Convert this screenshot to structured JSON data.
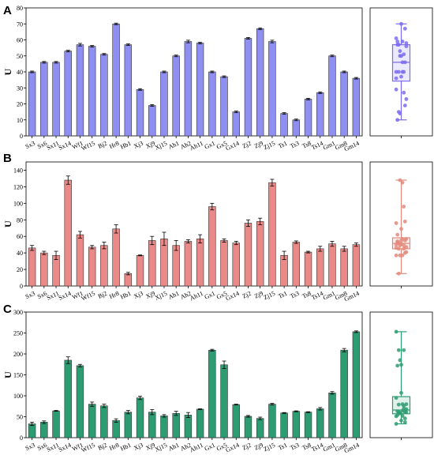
{
  "chart_data": [
    {
      "type": "bar",
      "panel": "A",
      "ylabel": "U",
      "ylim": [
        0,
        80
      ],
      "yticks": [
        0,
        10,
        20,
        30,
        40,
        50,
        60,
        70,
        80
      ],
      "bar_color": "#8f8ff2",
      "box_color": "#7b6cf0",
      "categories": [
        "Sx3",
        "Sx6",
        "Sx11",
        "Sx14",
        "Wf1",
        "Wf15",
        "Bj2",
        "Hr8",
        "Hb1",
        "Xj3",
        "Xj9",
        "Xj15",
        "Ah1",
        "Ah2",
        "Ah11",
        "Gx1",
        "Gx5",
        "Gx14",
        "Zj2",
        "Zj9",
        "Zj15",
        "Ts1",
        "Ts3",
        "Ts8",
        "Ts14",
        "Gm1",
        "Gm8",
        "Gm14"
      ],
      "values": [
        40,
        46,
        46,
        53,
        57,
        56,
        51,
        70,
        57,
        29,
        19,
        40,
        50,
        59,
        58,
        40,
        37,
        15,
        61,
        67,
        59,
        14,
        10,
        23,
        27,
        50,
        40,
        36
      ],
      "errors": [
        0.5,
        0.5,
        0.5,
        0.5,
        0.8,
        0.5,
        0.5,
        0.5,
        0.5,
        0.5,
        0.5,
        0.5,
        0.5,
        0.8,
        0.5,
        0.5,
        0.5,
        0.5,
        0.5,
        0.5,
        0.8,
        0.5,
        0.5,
        0.5,
        0.5,
        0.5,
        0.5,
        0.5
      ]
    },
    {
      "type": "bar",
      "panel": "B",
      "ylabel": "U",
      "ylim": [
        0,
        150
      ],
      "yticks": [
        0,
        20,
        40,
        60,
        80,
        100,
        120,
        140
      ],
      "bar_color": "#e98a88",
      "box_color": "#e38a7c",
      "categories": [
        "Sx3",
        "Sx6",
        "Sx11",
        "Sx14",
        "Wf1",
        "Wf15",
        "Bj2",
        "Hr8",
        "Hb1",
        "Xj3",
        "Xj9",
        "Xj15",
        "Ah1",
        "Ah2",
        "Ah11",
        "Gx1",
        "Gx5",
        "Gx14",
        "Zj2",
        "Zj9",
        "Zj15",
        "Ts1",
        "Ts3",
        "Ts8",
        "Ts14",
        "Gm1",
        "Gm8",
        "Gm14"
      ],
      "values": [
        46,
        40,
        37,
        128,
        62,
        47,
        49,
        69,
        15,
        37,
        55,
        57,
        49,
        54,
        57,
        96,
        55,
        52,
        76,
        78,
        125,
        37,
        53,
        41,
        45,
        51,
        45,
        50
      ],
      "errors": [
        3,
        2,
        5,
        5,
        4,
        2,
        4,
        5,
        1.5,
        0.5,
        5,
        8,
        6,
        2,
        5,
        4,
        2,
        2,
        4,
        4,
        4,
        5,
        1.5,
        1,
        3,
        3,
        3,
        2
      ]
    },
    {
      "type": "bar",
      "panel": "C",
      "ylabel": "U",
      "ylim": [
        0,
        300
      ],
      "yticks": [
        0,
        50,
        100,
        150,
        200,
        250,
        300
      ],
      "bar_color": "#2e9c72",
      "box_color": "#2e9c72",
      "categories": [
        "Sx3",
        "Sx6",
        "Sx11",
        "Sx14",
        "Wf1",
        "Wf15",
        "Bj2",
        "Hr8",
        "Hb1",
        "Xj3",
        "Xj9",
        "Xj15",
        "Ah1",
        "Ah2",
        "Ah11",
        "Gx1",
        "Gx5",
        "Gx14",
        "Zj2",
        "Zj9",
        "Zj15",
        "Ts1",
        "Ts3",
        "Ts8",
        "Ts14",
        "Gm1",
        "Gm8",
        "Gm14"
      ],
      "values": [
        33,
        37,
        64,
        185,
        172,
        80,
        76,
        41,
        61,
        95,
        61,
        52,
        58,
        54,
        68,
        209,
        174,
        79,
        51,
        46,
        80,
        59,
        63,
        61,
        69,
        107,
        209,
        253
      ],
      "errors": [
        4,
        3,
        1,
        8,
        3,
        5,
        4,
        4,
        4,
        4,
        6,
        3,
        5,
        6,
        1,
        2,
        9,
        1,
        2,
        3,
        2,
        1,
        1,
        1,
        3,
        3,
        4,
        2
      ]
    }
  ]
}
